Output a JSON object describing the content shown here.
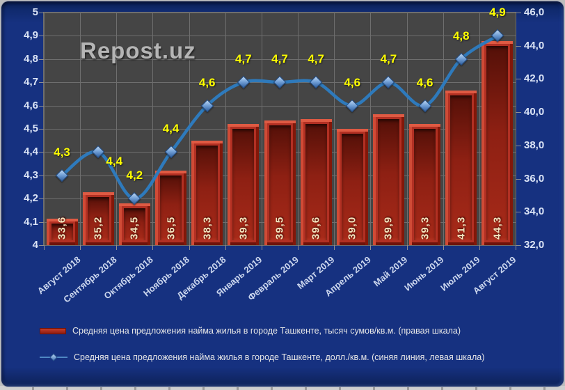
{
  "watermark": "Repost.uz",
  "colors": {
    "page_background": "#163180",
    "plot_background": "#454545",
    "gridline": "#6e6e6e",
    "bar_fill": "#b23023",
    "bar_highlight": "#df5a43",
    "bar_shadow": "#541008",
    "bar_label": "#f2e4be",
    "line": "#2e7abc",
    "marker_fill": "#74a2d8",
    "point_label": "#ffff00",
    "axis_text": "#dbe4f6",
    "legend_text": "#e6e6e6",
    "watermark_text": "#b5b5b5"
  },
  "chart_data": {
    "type": "combo-bar-line",
    "grid": true,
    "legend_position": "bottom-left",
    "categories": [
      "Август 2018",
      "Сентябрь 2018",
      "Октябрь 2018",
      "Ноябрь 2018",
      "Декабрь 2018",
      "Январь 2019",
      "Февраль 2019",
      "Март 2019",
      "Апрель 2019",
      "Май 2019",
      "Июнь 2019",
      "Июль 2019",
      "Август 2019"
    ],
    "series": [
      {
        "name": "Средняя цена предложения найма жилья в городе Ташкенте, тысяч сумов/кв.м. (правая шкала)",
        "type": "bar",
        "axis": "right",
        "values": [
          33.6,
          35.2,
          34.5,
          36.5,
          38.3,
          39.3,
          39.5,
          39.6,
          39.0,
          39.9,
          39.3,
          41.3,
          44.3
        ],
        "labels": [
          "33,6",
          "35,2",
          "34,5",
          "36,5",
          "38,3",
          "39,3",
          "39,5",
          "39,6",
          "39,0",
          "39,9",
          "39,3",
          "41,3",
          "44,3"
        ]
      },
      {
        "name": "Средняя цена предложения найма жилья в городе Ташкенте, долл./кв.м. (синяя линия, левая шкала)",
        "type": "line",
        "axis": "left",
        "values": [
          4.3,
          4.4,
          4.2,
          4.4,
          4.6,
          4.7,
          4.7,
          4.7,
          4.6,
          4.7,
          4.6,
          4.8,
          4.9
        ],
        "labels": [
          "4,3",
          "4,4",
          "4,2",
          "4,4",
          "4,6",
          "4,7",
          "4,7",
          "4,7",
          "4,6",
          "4,7",
          "4,6",
          "4,8",
          "4,9"
        ]
      }
    ],
    "left_axis": {
      "min": 4,
      "max": 5,
      "step": 0.1,
      "tick_labels": [
        "5",
        "4,9",
        "4,8",
        "4,7",
        "4,6",
        "4,5",
        "4,4",
        "4,3",
        "4,2",
        "4,1",
        "4"
      ]
    },
    "right_axis": {
      "min": 32,
      "max": 46,
      "step": 2,
      "tick_labels": [
        "46,0",
        "44,0",
        "42,0",
        "40,0",
        "38,0",
        "36,0",
        "34,0",
        "32,0"
      ]
    }
  }
}
